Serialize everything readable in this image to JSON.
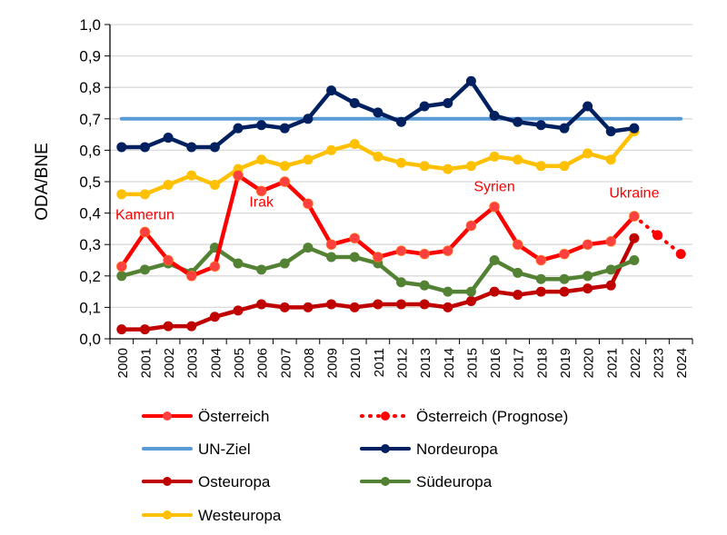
{
  "chart_data": {
    "type": "line",
    "ylabel": "ODA/BNE",
    "xlabel": "",
    "ylim": [
      0,
      1.0
    ],
    "yticks": [
      "0,0",
      "0,1",
      "0,2",
      "0,3",
      "0,4",
      "0,5",
      "0,6",
      "0,7",
      "0,8",
      "0,9",
      "1,0"
    ],
    "categories": [
      "2000",
      "2001",
      "2002",
      "2003",
      "2004",
      "2005",
      "2006",
      "2007",
      "2008",
      "2009",
      "2010",
      "2011",
      "2012",
      "2013",
      "2014",
      "2015",
      "2016",
      "2017",
      "2018",
      "2019",
      "2020",
      "2021",
      "2022",
      "2023",
      "2024"
    ],
    "grid": true,
    "legend_position": "bottom",
    "series": [
      {
        "name": "Österreich",
        "color": "#FF0000",
        "marker_fill": "#FF4040",
        "values": [
          0.23,
          0.34,
          0.25,
          0.2,
          0.23,
          0.52,
          0.47,
          0.5,
          0.43,
          0.3,
          0.32,
          0.26,
          0.28,
          0.27,
          0.28,
          0.36,
          0.42,
          0.3,
          0.25,
          0.27,
          0.3,
          0.31,
          0.39,
          null,
          null
        ]
      },
      {
        "name": "Österreich (Prognose)",
        "color": "#FF0000",
        "dotted": true,
        "values": [
          null,
          null,
          null,
          null,
          null,
          null,
          null,
          null,
          null,
          null,
          null,
          null,
          null,
          null,
          null,
          null,
          null,
          null,
          null,
          null,
          null,
          null,
          0.39,
          0.33,
          0.27
        ]
      },
      {
        "name": "UN-Ziel",
        "color": "#5B9BD5",
        "no_markers": true,
        "values": [
          0.7,
          0.7,
          0.7,
          0.7,
          0.7,
          0.7,
          0.7,
          0.7,
          0.7,
          0.7,
          0.7,
          0.7,
          0.7,
          0.7,
          0.7,
          0.7,
          0.7,
          0.7,
          0.7,
          0.7,
          0.7,
          0.7,
          0.7,
          0.7,
          0.7
        ]
      },
      {
        "name": "Nordeuropa",
        "color": "#002060",
        "values": [
          0.61,
          0.61,
          0.64,
          0.61,
          0.61,
          0.67,
          0.68,
          0.67,
          0.7,
          0.79,
          0.75,
          0.72,
          0.69,
          0.74,
          0.75,
          0.82,
          0.71,
          0.69,
          0.68,
          0.67,
          0.74,
          0.66,
          0.67,
          null,
          null
        ]
      },
      {
        "name": "Osteuropa",
        "color": "#C00000",
        "values": [
          0.03,
          0.03,
          0.04,
          0.04,
          0.07,
          0.09,
          0.11,
          0.1,
          0.1,
          0.11,
          0.1,
          0.11,
          0.11,
          0.11,
          0.1,
          0.12,
          0.15,
          0.14,
          0.15,
          0.15,
          0.16,
          0.17,
          0.32,
          null,
          null
        ]
      },
      {
        "name": "Südeuropa",
        "color": "#548235",
        "values": [
          0.2,
          0.22,
          0.24,
          0.21,
          0.29,
          0.24,
          0.22,
          0.24,
          0.29,
          0.26,
          0.26,
          0.24,
          0.18,
          0.17,
          0.15,
          0.15,
          0.25,
          0.21,
          0.19,
          0.19,
          0.2,
          0.22,
          0.25,
          null,
          null
        ]
      },
      {
        "name": "Westeuropa",
        "color": "#FFC000",
        "values": [
          0.46,
          0.46,
          0.49,
          0.52,
          0.49,
          0.54,
          0.57,
          0.55,
          0.57,
          0.6,
          0.62,
          0.58,
          0.56,
          0.55,
          0.54,
          0.55,
          0.58,
          0.57,
          0.55,
          0.55,
          0.59,
          0.57,
          0.66,
          null,
          null
        ]
      }
    ],
    "annotations": [
      {
        "text": "Kamerun",
        "year": "2001",
        "value": 0.38
      },
      {
        "text": "Irak",
        "year": "2006",
        "value": 0.42
      },
      {
        "text": "Syrien",
        "year": "2016",
        "value": 0.47
      },
      {
        "text": "Ukraine",
        "year": "2022",
        "value": 0.45
      }
    ]
  }
}
